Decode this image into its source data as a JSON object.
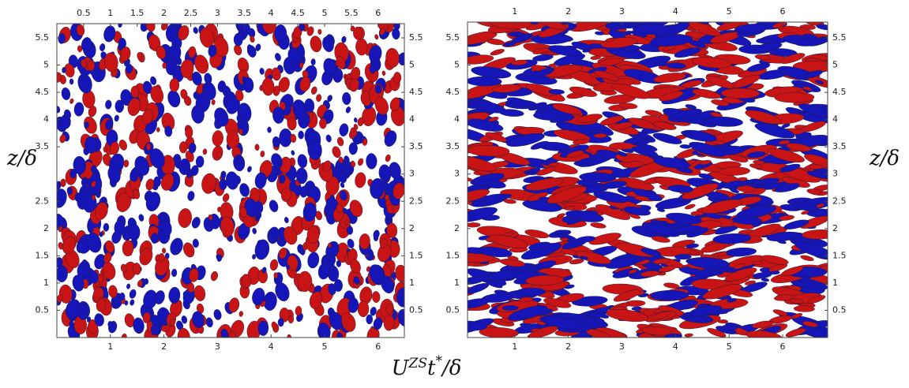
{
  "chart_data": [
    {
      "type": "isosurface",
      "xlim": [
        0,
        6.49
      ],
      "xticks": [
        1,
        2,
        3,
        4,
        5,
        6
      ],
      "x2lim": [
        0,
        6.49
      ],
      "x2ticks": [
        0.5,
        1,
        1.5,
        2,
        2.5,
        3,
        3.5,
        4,
        4.5,
        5,
        5.5,
        6
      ],
      "ylim": [
        0,
        5.76
      ],
      "yticks": [
        0.5,
        1,
        1.5,
        2,
        2.5,
        3.5,
        4,
        4.5,
        5,
        5.5
      ],
      "y2lim": [
        0,
        5.76
      ],
      "y2ticks": [
        0.5,
        1,
        1.5,
        2,
        2.5,
        3,
        3.5,
        4,
        4.5,
        5,
        5.5
      ],
      "ylabel": "z/δ",
      "colors": [
        "#c81414",
        "#1616b8"
      ]
    },
    {
      "type": "isosurface",
      "xlim": [
        0.12,
        6.84
      ],
      "xticks": [
        1,
        2,
        3,
        4,
        5,
        6
      ],
      "x2lim": [
        0.12,
        6.84
      ],
      "x2ticks": [
        1,
        2,
        3,
        4,
        5,
        6
      ],
      "ylim": [
        0,
        5.79
      ],
      "yticks": [
        0.5,
        1,
        1.5,
        2,
        2.5,
        3,
        3.5,
        4,
        4.5,
        5,
        5.5
      ],
      "y2lim": [
        0,
        5.79
      ],
      "y2ticks": [
        0.5,
        1,
        1.5,
        2,
        2.5,
        3,
        3.5,
        4,
        4.5,
        5,
        5.5
      ],
      "y2label": "z/δ",
      "colors": [
        "#c81414",
        "#1616b8"
      ]
    }
  ],
  "xlabel": [
    "U",
    "ZS",
    "t",
    "*",
    "/δ"
  ]
}
